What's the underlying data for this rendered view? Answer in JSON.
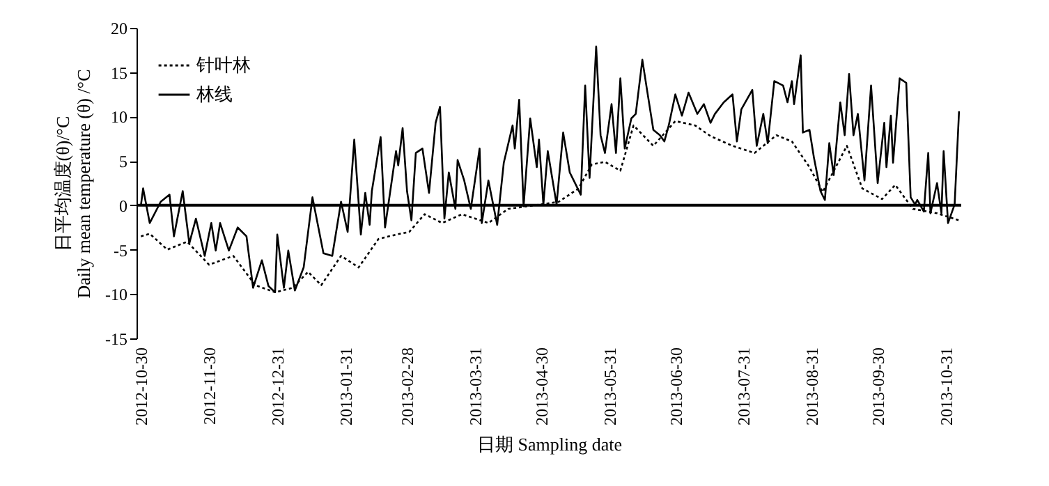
{
  "chart_data": {
    "type": "line",
    "xlabel": "日期  Sampling date",
    "ylabel": "日平均温度(θ)/°C\nDaily mean temperature (θ) /°C",
    "xlim": [
      "2012-10-28",
      "2013-11-07"
    ],
    "ylim": [
      -15,
      20
    ],
    "yticks": [
      -15,
      -10,
      -5,
      0,
      5,
      10,
      15,
      20
    ],
    "xticks": [
      "2012-10-30",
      "2012-11-30",
      "2012-12-31",
      "2013-01-31",
      "2013-02-28",
      "2013-03-31",
      "2013-04-30",
      "2013-05-31",
      "2013-06-30",
      "2013-07-31",
      "2013-08-31",
      "2013-09-30",
      "2013-10-31"
    ],
    "ref_lines": [
      {
        "axis": "y",
        "value": 0,
        "color": "#000000",
        "line_style": "solid"
      }
    ],
    "legend": "top left",
    "grid": false,
    "series": [
      {
        "name": "针叶林",
        "color": "#000000",
        "line_style": "dotted",
        "x": [
          "2012-10-30",
          "2012-11-03",
          "2012-11-11",
          "2012-11-20",
          "2012-11-30",
          "2012-12-11",
          "2012-12-21",
          "2012-12-30",
          "2013-01-07",
          "2013-01-14",
          "2013-01-20",
          "2013-01-29",
          "2013-02-06",
          "2013-02-15",
          "2013-02-23",
          "2013-03-01",
          "2013-03-08",
          "2013-03-16",
          "2013-03-25",
          "2013-04-06",
          "2013-04-15",
          "2013-04-30",
          "2013-05-08",
          "2013-05-17",
          "2013-05-23",
          "2013-05-29",
          "2013-06-05",
          "2013-06-11",
          "2013-06-20",
          "2013-06-30",
          "2013-07-09",
          "2013-07-16",
          "2013-07-26",
          "2013-08-05",
          "2013-08-15",
          "2013-08-22",
          "2013-08-30",
          "2013-09-05",
          "2013-09-16",
          "2013-09-23",
          "2013-10-02",
          "2013-10-08",
          "2013-10-16",
          "2013-10-27",
          "2013-11-06"
        ],
        "values": [
          -3.5,
          -3.2,
          -5.0,
          -4.1,
          -6.7,
          -5.7,
          -9.0,
          -9.8,
          -9.3,
          -7.5,
          -9.0,
          -5.7,
          -7.0,
          -3.8,
          -3.3,
          -3.0,
          -1.0,
          -2.0,
          -1.0,
          -2.0,
          -0.4,
          0.1,
          0.4,
          1.9,
          4.6,
          4.9,
          3.9,
          9.0,
          6.7,
          9.5,
          9.0,
          7.8,
          6.7,
          5.9,
          7.9,
          7.2,
          4.3,
          1.5,
          6.7,
          1.9,
          0.7,
          2.3,
          -0.4,
          -0.9,
          -1.7
        ]
      },
      {
        "name": "林线",
        "color": "#000000",
        "line_style": "solid",
        "x": [
          "2012-10-30",
          "2012-10-31",
          "2012-11-03",
          "2012-11-08",
          "2012-11-12",
          "2012-11-14",
          "2012-11-18",
          "2012-11-21",
          "2012-11-24",
          "2012-11-28",
          "2012-12-01",
          "2012-12-03",
          "2012-12-05",
          "2012-12-09",
          "2012-12-13",
          "2012-12-17",
          "2012-12-20",
          "2012-12-24",
          "2012-12-27",
          "2012-12-30",
          "2012-12-31",
          "2013-01-03",
          "2013-01-05",
          "2013-01-08",
          "2013-01-12",
          "2013-01-16",
          "2013-01-21",
          "2013-01-25",
          "2013-01-29",
          "2013-02-01",
          "2013-02-04",
          "2013-02-07",
          "2013-02-09",
          "2013-02-11",
          "2013-02-12",
          "2013-02-16",
          "2013-02-18",
          "2013-02-23",
          "2013-02-24",
          "2013-02-26",
          "2013-02-28",
          "2013-03-02",
          "2013-03-04",
          "2013-03-07",
          "2013-03-10",
          "2013-03-13",
          "2013-03-15",
          "2013-03-17",
          "2013-03-19",
          "2013-03-22",
          "2013-03-23",
          "2013-03-26",
          "2013-03-29",
          "2013-04-02",
          "2013-04-03",
          "2013-04-06",
          "2013-04-10",
          "2013-04-13",
          "2013-04-17",
          "2013-04-18",
          "2013-04-20",
          "2013-04-22",
          "2013-04-25",
          "2013-04-28",
          "2013-04-29",
          "2013-05-01",
          "2013-05-03",
          "2013-05-07",
          "2013-05-10",
          "2013-05-13",
          "2013-05-18",
          "2013-05-20",
          "2013-05-22",
          "2013-05-25",
          "2013-05-27",
          "2013-05-29",
          "2013-06-01",
          "2013-06-03",
          "2013-06-05",
          "2013-06-07",
          "2013-06-10",
          "2013-06-12",
          "2013-06-15",
          "2013-06-17",
          "2013-06-20",
          "2013-06-23",
          "2013-06-25",
          "2013-06-27",
          "2013-06-30",
          "2013-07-03",
          "2013-07-06",
          "2013-07-10",
          "2013-07-13",
          "2013-07-16",
          "2013-07-18",
          "2013-07-22",
          "2013-07-26",
          "2013-07-28",
          "2013-07-30",
          "2013-08-04",
          "2013-08-06",
          "2013-08-09",
          "2013-08-11",
          "2013-08-14",
          "2013-08-18",
          "2013-08-20",
          "2013-08-22",
          "2013-08-23",
          "2013-08-26",
          "2013-08-27",
          "2013-08-30",
          "2013-09-01",
          "2013-09-04",
          "2013-09-06",
          "2013-09-08",
          "2013-09-10",
          "2013-09-13",
          "2013-09-15",
          "2013-09-17",
          "2013-09-19",
          "2013-09-21",
          "2013-09-24",
          "2013-09-27",
          "2013-09-30",
          "2013-10-03",
          "2013-10-04",
          "2013-10-06",
          "2013-10-07",
          "2013-10-10",
          "2013-10-13",
          "2013-10-15",
          "2013-10-17",
          "2013-10-18",
          "2013-10-21",
          "2013-10-23",
          "2013-10-24",
          "2013-10-27",
          "2013-10-29",
          "2013-10-30",
          "2013-11-01",
          "2013-11-04",
          "2013-11-06"
        ],
        "values": [
          0.0,
          1.9,
          -2.0,
          0.4,
          1.2,
          -3.5,
          1.6,
          -4.3,
          -1.5,
          -5.7,
          -2.0,
          -5.1,
          -2.0,
          -5.1,
          -2.5,
          -3.5,
          -9.3,
          -6.2,
          -9.1,
          -9.8,
          -3.3,
          -9.3,
          -5.1,
          -9.6,
          -7.0,
          0.9,
          -5.4,
          -5.7,
          0.4,
          -3.0,
          7.4,
          -3.3,
          1.4,
          -2.2,
          1.6,
          7.7,
          -2.5,
          6.1,
          4.5,
          8.7,
          1.6,
          -1.7,
          5.9,
          6.4,
          1.4,
          9.3,
          11.1,
          -1.5,
          3.7,
          -0.4,
          5.1,
          2.8,
          -0.4,
          6.4,
          -2.0,
          2.8,
          -2.2,
          4.8,
          9.0,
          6.4,
          11.9,
          -0.1,
          9.8,
          4.3,
          7.4,
          0.1,
          6.1,
          0.1,
          8.2,
          3.7,
          1.2,
          13.5,
          3.1,
          17.9,
          7.9,
          5.9,
          11.4,
          5.9,
          14.3,
          6.4,
          9.8,
          10.3,
          16.4,
          13.2,
          8.5,
          7.9,
          7.2,
          9.0,
          12.5,
          10.1,
          12.7,
          10.3,
          11.4,
          9.3,
          10.3,
          11.6,
          12.5,
          7.2,
          10.8,
          13.0,
          6.7,
          10.3,
          7.0,
          14.0,
          13.5,
          11.6,
          14.0,
          11.4,
          16.9,
          8.2,
          8.5,
          5.4,
          1.6,
          0.6,
          7.0,
          3.4,
          11.6,
          7.9,
          14.8,
          7.9,
          10.3,
          2.8,
          13.5,
          2.5,
          9.3,
          4.3,
          10.1,
          4.8,
          14.3,
          13.8,
          0.9,
          0.1,
          0.6,
          -0.7,
          5.9,
          -0.9,
          2.5,
          -0.9,
          6.1,
          -2.0,
          0.1,
          10.6
        ]
      }
    ]
  }
}
